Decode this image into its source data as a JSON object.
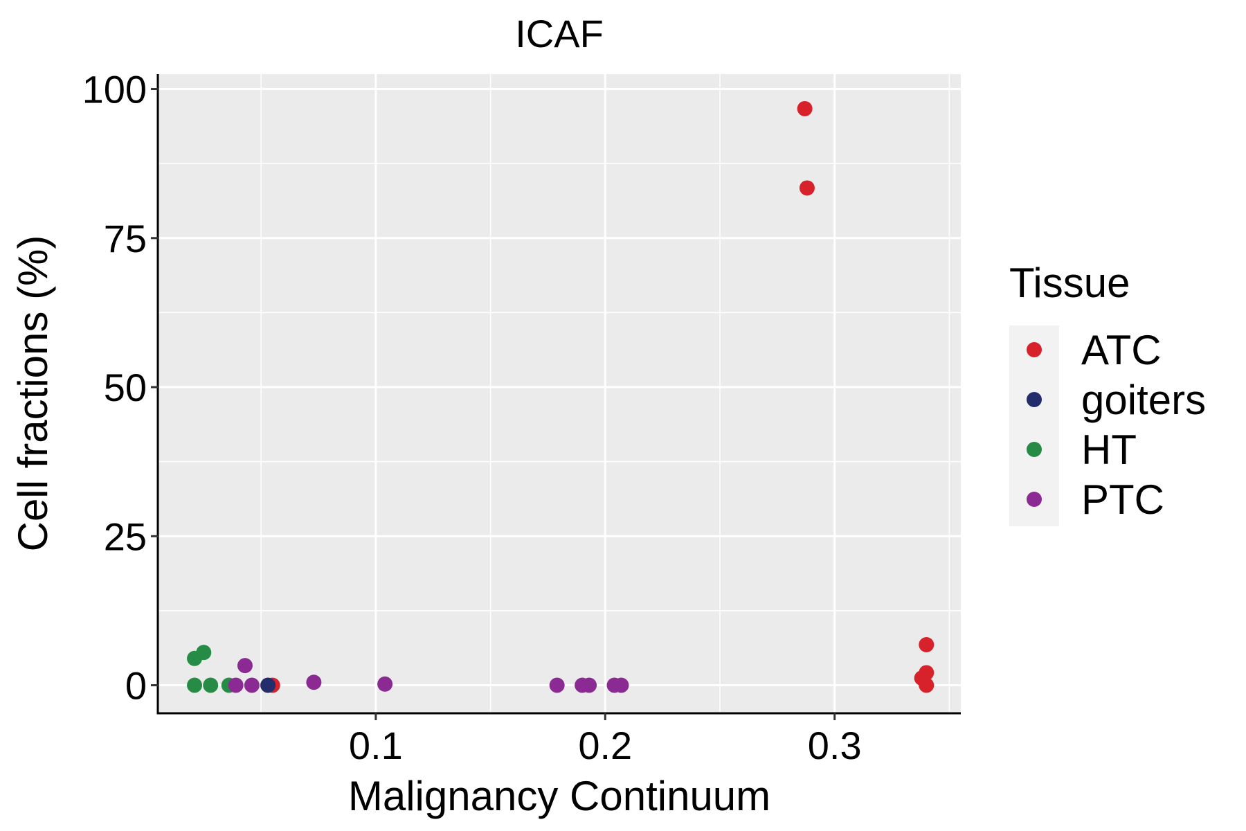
{
  "chart_data": {
    "type": "scatter",
    "title": "ICAF",
    "xlabel": "Malignancy Continuum",
    "ylabel": "Cell fractions (%)",
    "xlim": [
      0.005,
      0.355
    ],
    "ylim": [
      -4.7,
      102.5
    ],
    "x_ticks": [
      0.1,
      0.2,
      0.3
    ],
    "x_tick_labels": [
      "0.1",
      "0.2",
      "0.3"
    ],
    "x_minor_ticks": [
      0.05,
      0.15,
      0.25,
      0.35
    ],
    "y_ticks": [
      0,
      25,
      50,
      75,
      100
    ],
    "y_tick_labels": [
      "0",
      "25",
      "50",
      "75",
      "100"
    ],
    "y_minor_ticks": [
      12.5,
      37.5,
      62.5,
      87.5
    ],
    "grid": true,
    "panel_background": "#EBEBEB",
    "legend": {
      "title": "Tissue",
      "position": "right",
      "entries": [
        "ATC",
        "goiters",
        "HT",
        "PTC"
      ]
    },
    "series": [
      {
        "name": "ATC",
        "color": "#D7222B",
        "points": [
          {
            "x": 0.287,
            "y": 96.7
          },
          {
            "x": 0.288,
            "y": 83.4
          },
          {
            "x": 0.34,
            "y": 6.8
          },
          {
            "x": 0.34,
            "y": 2.1
          },
          {
            "x": 0.338,
            "y": 1.2
          },
          {
            "x": 0.34,
            "y": 0.0
          },
          {
            "x": 0.055,
            "y": 0.0
          }
        ]
      },
      {
        "name": "goiters",
        "color": "#232D6B",
        "points": [
          {
            "x": 0.053,
            "y": 0.0
          }
        ]
      },
      {
        "name": "HT",
        "color": "#268C45",
        "points": [
          {
            "x": 0.021,
            "y": 4.5
          },
          {
            "x": 0.025,
            "y": 5.5
          },
          {
            "x": 0.021,
            "y": 0.0
          },
          {
            "x": 0.028,
            "y": 0.0
          },
          {
            "x": 0.036,
            "y": 0.0
          }
        ]
      },
      {
        "name": "PTC",
        "color": "#8B2A93",
        "points": [
          {
            "x": 0.043,
            "y": 3.3
          },
          {
            "x": 0.039,
            "y": 0.0
          },
          {
            "x": 0.046,
            "y": 0.0
          },
          {
            "x": 0.073,
            "y": 0.5
          },
          {
            "x": 0.104,
            "y": 0.2
          },
          {
            "x": 0.179,
            "y": 0.0
          },
          {
            "x": 0.19,
            "y": 0.0
          },
          {
            "x": 0.193,
            "y": 0.0
          },
          {
            "x": 0.204,
            "y": 0.0
          },
          {
            "x": 0.207,
            "y": 0.0
          }
        ]
      }
    ]
  }
}
